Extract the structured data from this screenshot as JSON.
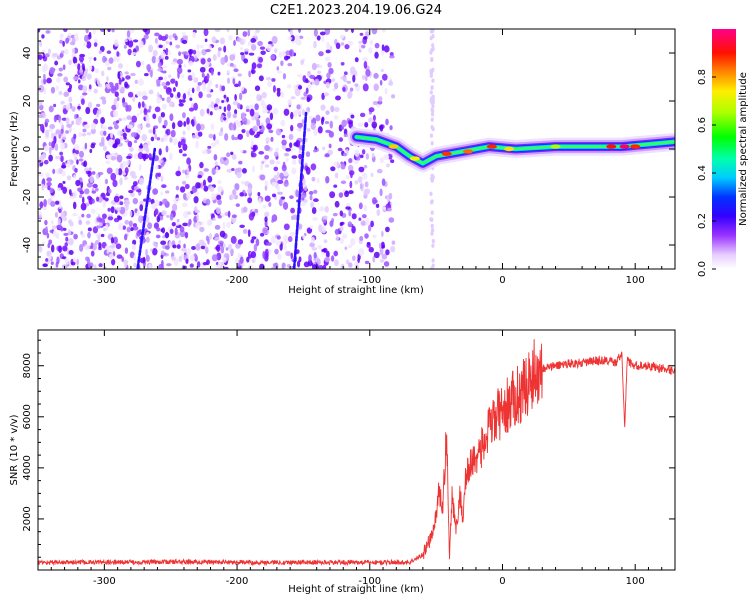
{
  "title": "C2E1.2023.204.19.06.G24",
  "chart_data": [
    {
      "type": "heatmap",
      "xlabel": "Height of straight line (km)",
      "ylabel": "Frequency (Hz)",
      "xlim": [
        -350,
        130
      ],
      "ylim": [
        -50,
        50
      ],
      "xticks": [
        -300,
        -200,
        -100,
        0,
        100
      ],
      "yticks": [
        -40,
        -20,
        0,
        20,
        40
      ],
      "colorbar": {
        "label": "Normalized spectral amplitude",
        "range": [
          0,
          1
        ],
        "ticks": [
          0.0,
          0.2,
          0.4,
          0.6,
          0.8
        ],
        "colormap": [
          "#ffffff",
          "#cc99ff",
          "#7a00ff",
          "#0000ff",
          "#00ffff",
          "#00ff00",
          "#ffff00",
          "#ff8000",
          "#ff0000",
          "#ff0080"
        ]
      },
      "ridge": [
        {
          "x": -110,
          "y": 5
        },
        {
          "x": -95,
          "y": 4
        },
        {
          "x": -80,
          "y": 1
        },
        {
          "x": -70,
          "y": -3
        },
        {
          "x": -60,
          "y": -6
        },
        {
          "x": -50,
          "y": -3
        },
        {
          "x": -30,
          "y": -1
        },
        {
          "x": -10,
          "y": 1
        },
        {
          "x": 10,
          "y": 0
        },
        {
          "x": 40,
          "y": 1
        },
        {
          "x": 70,
          "y": 1
        },
        {
          "x": 90,
          "y": 1
        },
        {
          "x": 110,
          "y": 2
        },
        {
          "x": 130,
          "y": 3
        }
      ],
      "streaks": [
        {
          "x": [
            -275,
            -262
          ],
          "y": [
            -50,
            0
          ]
        },
        {
          "x": [
            -157,
            -148
          ],
          "y": [
            -50,
            15
          ]
        }
      ],
      "noise_extent": {
        "x": [
          -350,
          -82
        ]
      }
    },
    {
      "type": "line",
      "xlabel": "Height of straight line (km)",
      "ylabel": "SNR (10 * v/v)",
      "xlim": [
        -350,
        130
      ],
      "ylim": [
        0,
        9400
      ],
      "xticks": [
        -300,
        -200,
        -100,
        0,
        100
      ],
      "yticks": [
        2000,
        4000,
        6000,
        8000
      ],
      "color": "#ee3333",
      "series": [
        {
          "x": [
            -350,
            -300,
            -250,
            -200,
            -150,
            -100,
            -70,
            -60,
            -52,
            -48,
            -45,
            -42,
            -40,
            -38,
            -35,
            -32,
            -30,
            -28,
            -25,
            -20,
            -15,
            -10,
            -5,
            0,
            5,
            10,
            15,
            20,
            25,
            30,
            40,
            50,
            60,
            70,
            80,
            85,
            90,
            92,
            94,
            96,
            100,
            110,
            120,
            130
          ],
          "y": [
            300,
            300,
            320,
            300,
            300,
            300,
            300,
            600,
            1500,
            3000,
            2500,
            5500,
            500,
            3000,
            1500,
            3000,
            2000,
            3500,
            4000,
            4500,
            4800,
            5500,
            6000,
            6200,
            6500,
            6800,
            7000,
            7400,
            7800,
            7900,
            8000,
            8100,
            8100,
            8200,
            8200,
            8100,
            8500,
            5500,
            8300,
            8100,
            8000,
            8000,
            7900,
            7800
          ]
        }
      ]
    }
  ]
}
